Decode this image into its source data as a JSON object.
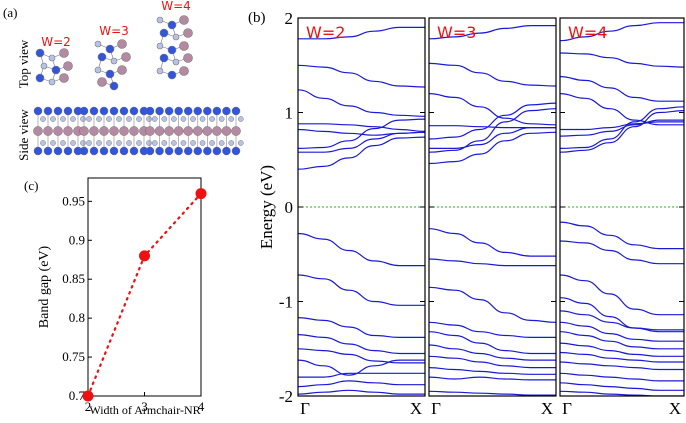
{
  "panel_labels": {
    "a": "(a)",
    "b": "(b)",
    "c": "(c)"
  },
  "panel_a": {
    "row_labels": {
      "top": "Top view",
      "side": "Side view"
    },
    "width_labels": [
      "W=2",
      "W=3",
      "W=4"
    ]
  },
  "colors": {
    "band": "#1a1ad6",
    "fermi": "#22bb22",
    "point": "#ee1111",
    "label_red": "#ee1111",
    "atom_p": "#3355dd",
    "atom_light": "#b8c2e6",
    "atom_pink": "#b48aa2"
  },
  "chart_data": [
    {
      "type": "scatter",
      "panel": "c",
      "title": "",
      "xlabel": "Width of Armchair-NR",
      "ylabel": "Band gap (eV)",
      "x": [
        2,
        3,
        4
      ],
      "values": [
        0.7,
        0.88,
        0.96
      ],
      "xticks": [
        "2",
        "3",
        "4"
      ],
      "yticks": [
        "0.7",
        "0.75",
        "0.8",
        "0.85",
        "0.9",
        "0.95"
      ],
      "xlim": [
        2,
        4
      ],
      "ylim": [
        0.7,
        0.98
      ],
      "line_style": "dotted"
    },
    {
      "type": "line",
      "panel": "b",
      "title": "",
      "ylabel": "Energy (eV)",
      "ylim": [
        -2,
        2
      ],
      "yticks": [
        "-2",
        "-1",
        "0",
        "1",
        "2"
      ],
      "fermi_level": 0,
      "xtick_labels": [
        "Γ",
        "X"
      ],
      "subpanels": [
        {
          "label": "W=2",
          "bands": [
            [
              1.78,
              1.78,
              1.8,
              1.86,
              1.9,
              1.9
            ],
            [
              1.5,
              1.48,
              1.42,
              1.33,
              1.28,
              1.27
            ],
            [
              1.24,
              1.15,
              1.07,
              1.0,
              0.97,
              0.96
            ],
            [
              0.88,
              0.88,
              0.87,
              0.85,
              0.82,
              0.8
            ],
            [
              0.82,
              0.8,
              0.78,
              0.76,
              0.78,
              0.79
            ],
            [
              0.62,
              0.63,
              0.7,
              0.83,
              0.92,
              0.93
            ],
            [
              0.58,
              0.58,
              0.62,
              0.72,
              0.78,
              0.79
            ],
            [
              0.4,
              0.43,
              0.52,
              0.65,
              0.73,
              0.74
            ],
            [
              -0.28,
              -0.34,
              -0.46,
              -0.57,
              -0.62,
              -0.62
            ],
            [
              -0.72,
              -0.76,
              -0.88,
              -1.0,
              -1.04,
              -1.04
            ],
            [
              -1.17,
              -1.2,
              -1.27,
              -1.36,
              -1.38,
              -1.38
            ],
            [
              -1.35,
              -1.38,
              -1.45,
              -1.52,
              -1.55,
              -1.55
            ],
            [
              -1.5,
              -1.52,
              -1.56,
              -1.63,
              -1.65,
              -1.65
            ],
            [
              -1.62,
              -1.68,
              -1.78,
              -1.68,
              -1.62,
              -1.62
            ],
            [
              -1.8,
              -1.8,
              -1.76,
              -1.76,
              -1.76,
              -1.76
            ],
            [
              -1.9,
              -1.88,
              -1.84,
              -1.86,
              -1.88,
              -1.88
            ],
            [
              -1.98,
              -1.96,
              -1.94,
              -1.96,
              -1.98,
              -1.98
            ]
          ]
        },
        {
          "label": "W=3",
          "bands": [
            [
              1.78,
              1.8,
              1.84,
              1.89,
              1.92,
              1.92
            ],
            [
              1.52,
              1.5,
              1.42,
              1.33,
              1.29,
              1.28
            ],
            [
              1.2,
              1.16,
              1.06,
              0.94,
              0.88,
              0.87
            ],
            [
              0.86,
              0.86,
              0.85,
              0.84,
              0.84,
              0.84
            ],
            [
              0.72,
              0.74,
              0.82,
              0.97,
              1.08,
              1.1
            ],
            [
              0.62,
              0.62,
              0.66,
              0.78,
              0.84,
              0.84
            ],
            [
              0.58,
              0.6,
              0.7,
              0.9,
              1.02,
              1.04
            ],
            [
              0.46,
              0.48,
              0.56,
              0.7,
              0.78,
              0.79
            ],
            [
              -0.23,
              -0.28,
              -0.38,
              -0.48,
              -0.52,
              -0.52
            ],
            [
              -0.55,
              -0.57,
              -0.6,
              -0.62,
              -0.62,
              -0.62
            ],
            [
              -0.85,
              -0.88,
              -0.98,
              -1.12,
              -1.2,
              -1.22
            ],
            [
              -1.22,
              -1.25,
              -1.32,
              -1.36,
              -1.38,
              -1.38
            ],
            [
              -1.32,
              -1.36,
              -1.44,
              -1.52,
              -1.55,
              -1.55
            ],
            [
              -1.46,
              -1.5,
              -1.55,
              -1.6,
              -1.62,
              -1.62
            ],
            [
              -1.58,
              -1.6,
              -1.64,
              -1.68,
              -1.7,
              -1.7
            ],
            [
              -1.7,
              -1.72,
              -1.74,
              -1.76,
              -1.77,
              -1.77
            ],
            [
              -1.8,
              -1.82,
              -1.8,
              -1.82,
              -1.83,
              -1.83
            ],
            [
              -1.95,
              -1.96,
              -1.97,
              -1.98,
              -1.99,
              -1.99
            ]
          ]
        },
        {
          "label": "W=4",
          "bands": [
            [
              1.76,
              1.8,
              1.86,
              1.92,
              1.95,
              1.95
            ],
            [
              1.63,
              1.62,
              1.58,
              1.52,
              1.49,
              1.48
            ],
            [
              1.38,
              1.34,
              1.26,
              1.16,
              1.12,
              1.12
            ],
            [
              1.2,
              1.15,
              1.04,
              0.92,
              0.87,
              0.87
            ],
            [
              0.82,
              0.82,
              0.84,
              0.88,
              0.9,
              0.9
            ],
            [
              0.75,
              0.76,
              0.8,
              0.87,
              0.92,
              0.92
            ],
            [
              0.62,
              0.63,
              0.72,
              0.9,
              1.04,
              1.06
            ],
            [
              0.58,
              0.6,
              0.68,
              0.85,
              1.0,
              1.02
            ],
            [
              -0.16,
              -0.2,
              -0.3,
              -0.4,
              -0.44,
              -0.44
            ],
            [
              -0.36,
              -0.38,
              -0.46,
              -0.56,
              -0.6,
              -0.6
            ],
            [
              -0.72,
              -0.78,
              -0.92,
              -1.08,
              -1.14,
              -1.14
            ],
            [
              -0.96,
              -1.02,
              -1.16,
              -1.28,
              -1.32,
              -1.32
            ],
            [
              -1.1,
              -1.14,
              -1.22,
              -1.28,
              -1.3,
              -1.3
            ],
            [
              -1.22,
              -1.26,
              -1.34,
              -1.4,
              -1.42,
              -1.42
            ],
            [
              -1.32,
              -1.36,
              -1.42,
              -1.48,
              -1.5,
              -1.5
            ],
            [
              -1.44,
              -1.47,
              -1.52,
              -1.56,
              -1.58,
              -1.58
            ],
            [
              -1.54,
              -1.56,
              -1.6,
              -1.62,
              -1.64,
              -1.64
            ],
            [
              -1.64,
              -1.66,
              -1.68,
              -1.7,
              -1.72,
              -1.72
            ],
            [
              -1.76,
              -1.78,
              -1.8,
              -1.82,
              -1.84,
              -1.84
            ],
            [
              -1.86,
              -1.88,
              -1.9,
              -1.92,
              -1.94,
              -1.94
            ],
            [
              -1.95,
              -1.96,
              -1.98,
              -1.99,
              -2.0,
              -2.0
            ]
          ]
        }
      ]
    }
  ]
}
